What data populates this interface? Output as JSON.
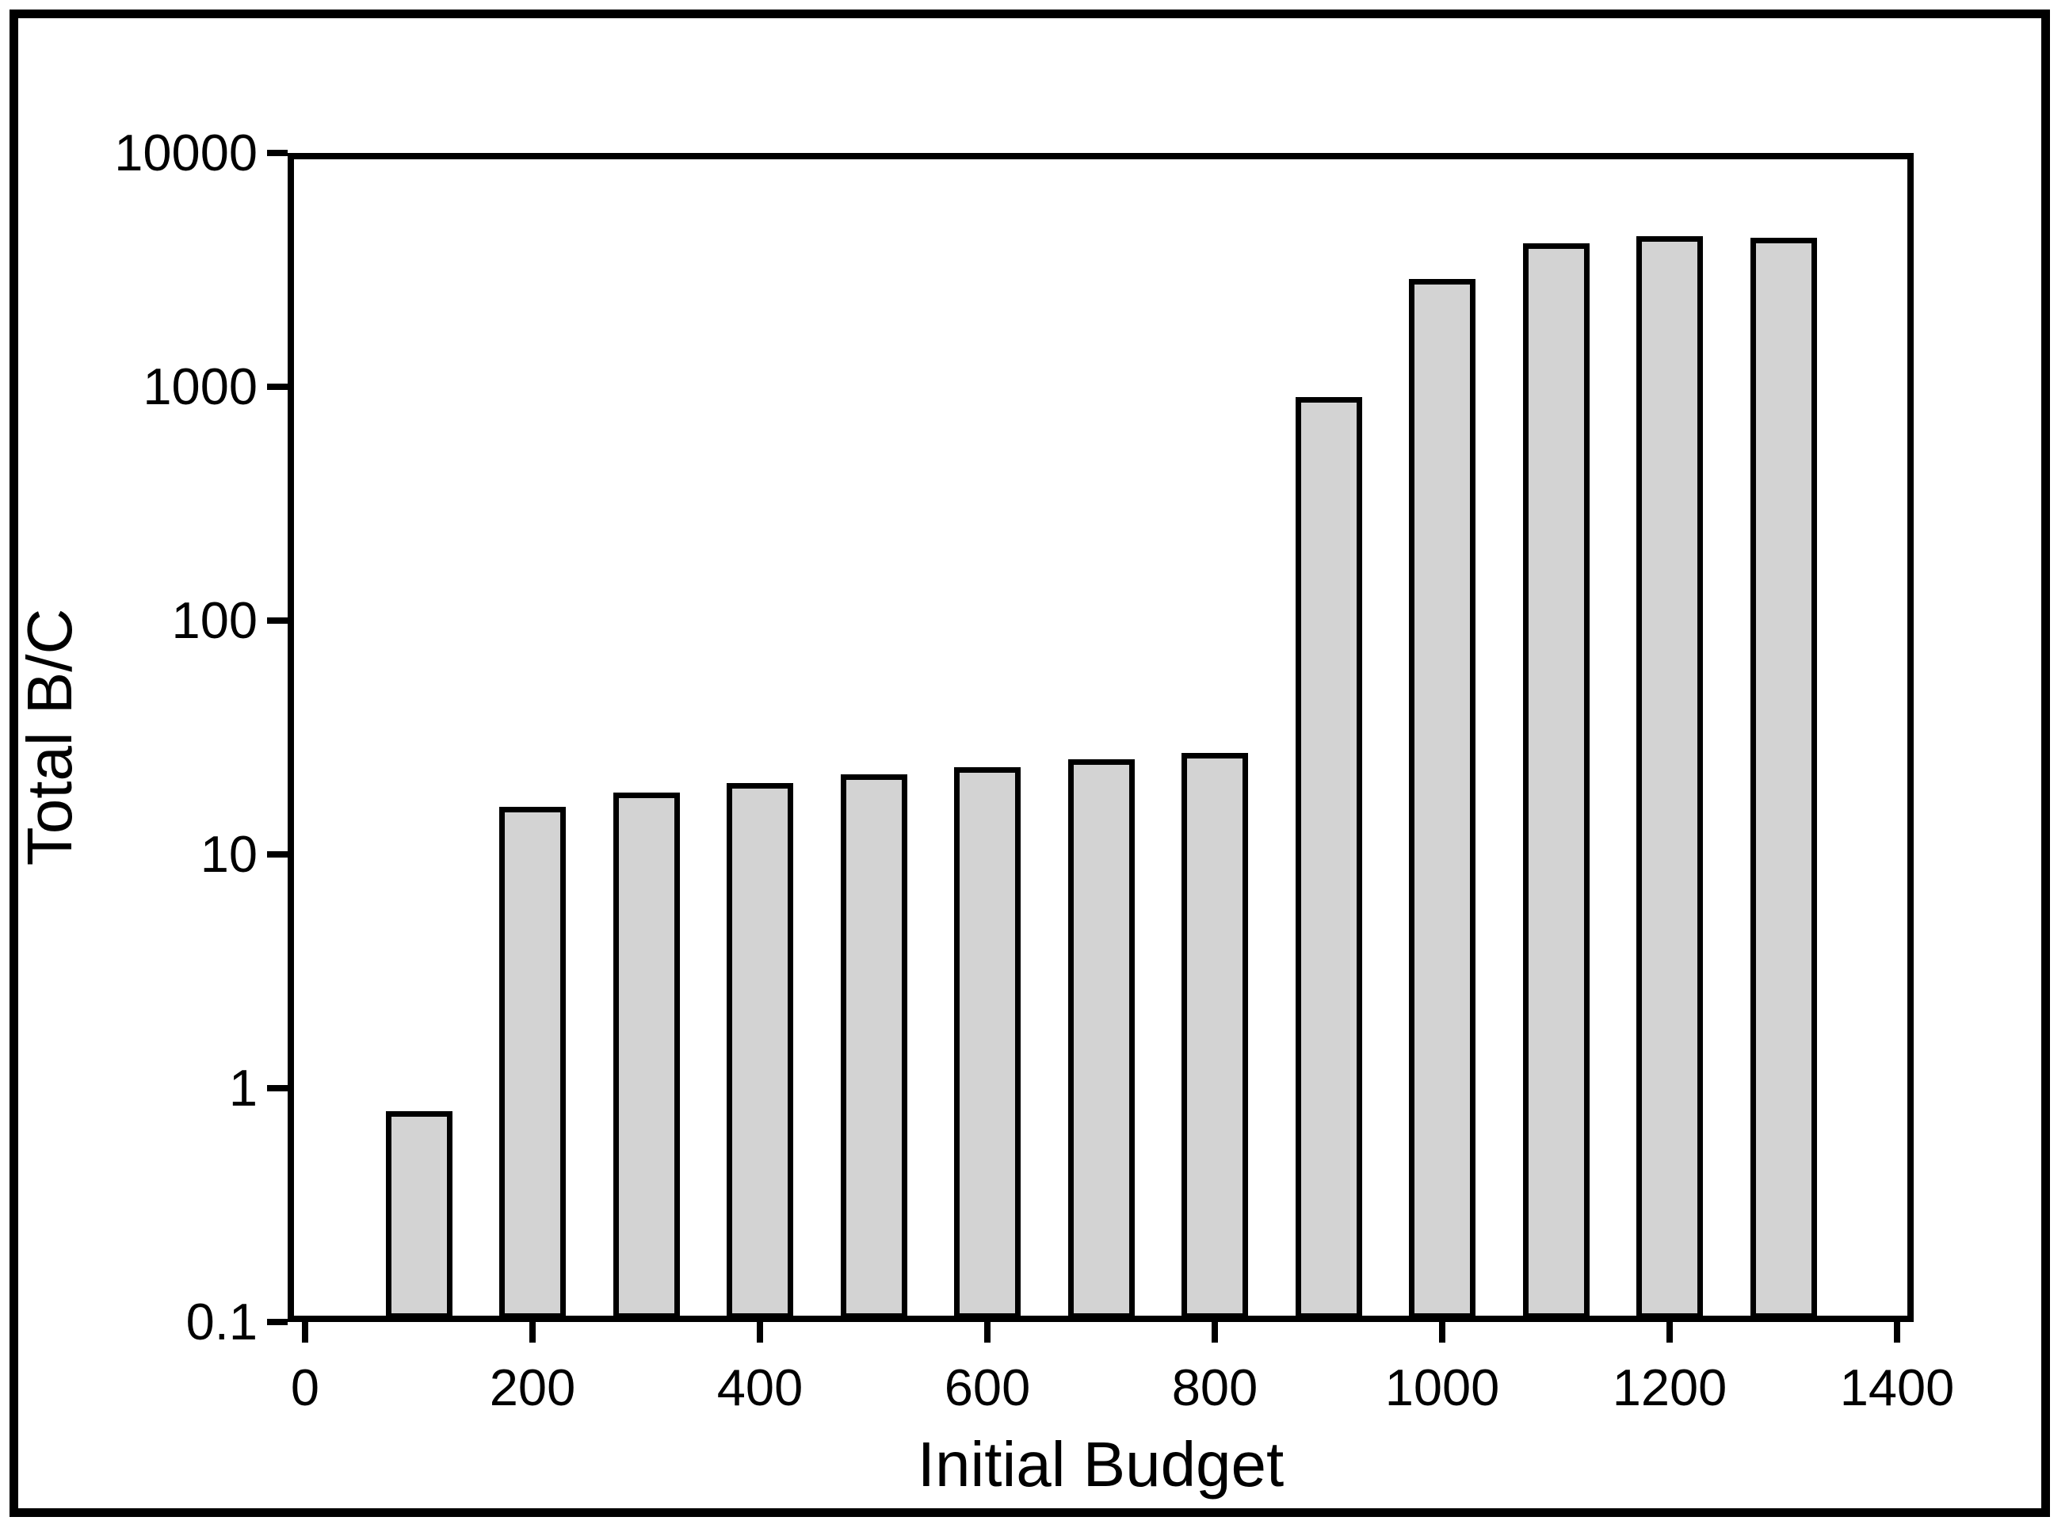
{
  "figure": {
    "background_color": "#ffffff",
    "border_color": "#000000"
  },
  "chart_data": {
    "type": "bar",
    "title": "",
    "xlabel": "Initial Budget",
    "ylabel": "Total B/C",
    "grid": false,
    "legend": null,
    "bar_color": "#d3d3d3",
    "bar_border_color": "#000000",
    "x_axis": {
      "min": 0,
      "max": 1400,
      "ticks": [
        0,
        200,
        400,
        600,
        800,
        1000,
        1200,
        1400
      ],
      "tick_labels": [
        "0",
        "200",
        "400",
        "600",
        "800",
        "1000",
        "1200",
        "1400"
      ]
    },
    "y_axis": {
      "scale": "log",
      "min": 0.1,
      "max": 10000,
      "ticks": [
        10000,
        1000,
        100,
        10,
        1,
        0.1
      ],
      "tick_labels": [
        "10000",
        "1000",
        "100",
        "10",
        "1",
        "0.1"
      ]
    },
    "categories": [
      100,
      200,
      300,
      400,
      500,
      600,
      700,
      800,
      900,
      1000,
      1100,
      1200,
      1300
    ],
    "values": [
      0.8,
      16,
      18.4,
      20.2,
      22,
      23.6,
      25.5,
      27.2,
      900,
      2900,
      4100,
      4400,
      4350
    ]
  }
}
